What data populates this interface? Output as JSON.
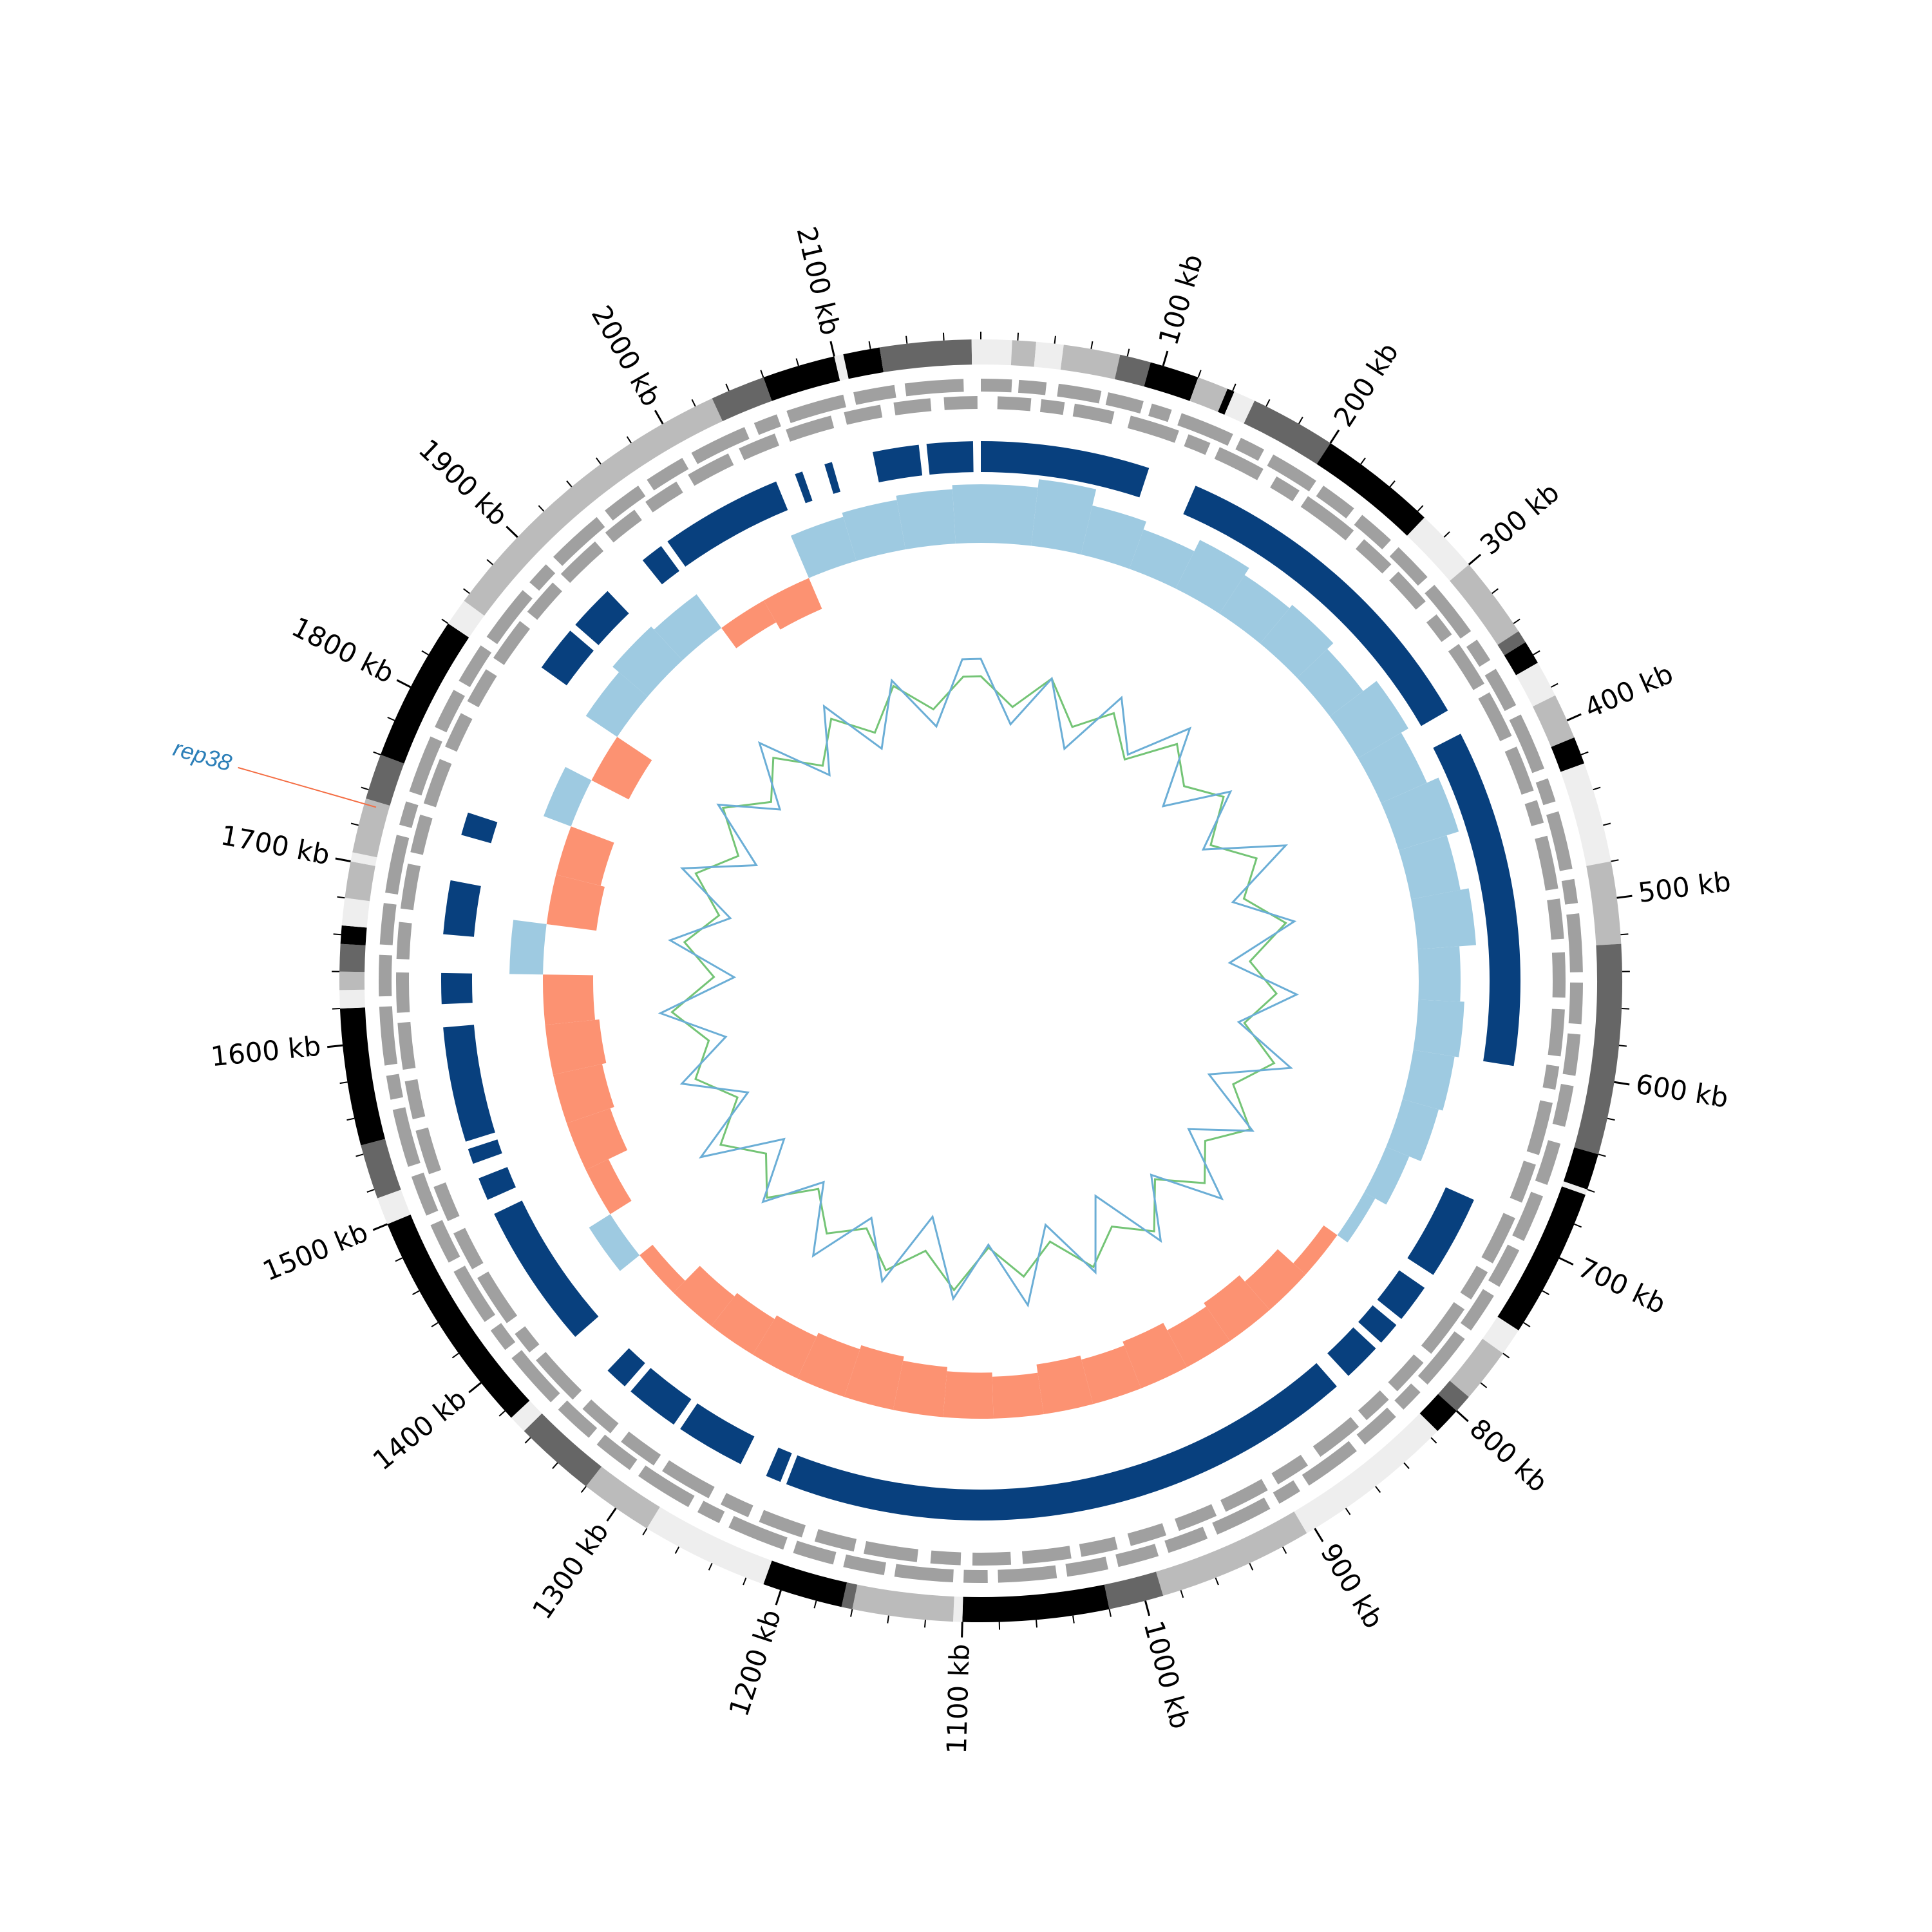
{
  "chart_data": {
    "type": "circos",
    "xlim": [
      0,
      2180
    ],
    "xticks": [
      {
        "value": 100,
        "label": "100 kb"
      },
      {
        "value": 200,
        "label": "200 kb"
      },
      {
        "value": 300,
        "label": "300 kb"
      },
      {
        "value": 400,
        "label": "400 kb"
      },
      {
        "value": 500,
        "label": "500 kb"
      },
      {
        "value": 600,
        "label": "600 kb"
      },
      {
        "value": 700,
        "label": "700 kb"
      },
      {
        "value": 800,
        "label": "800 kb"
      },
      {
        "value": 900,
        "label": "900 kb"
      },
      {
        "value": 1000,
        "label": "1000 kb"
      },
      {
        "value": 1100,
        "label": "1100 kb"
      },
      {
        "value": 1200,
        "label": "1200 kb"
      },
      {
        "value": 1300,
        "label": "1300 kb"
      },
      {
        "value": 1400,
        "label": "1400 kb"
      },
      {
        "value": 1500,
        "label": "1500 kb"
      },
      {
        "value": 1600,
        "label": "1600 kb"
      },
      {
        "value": 1700,
        "label": "1700 kb"
      },
      {
        "value": 1800,
        "label": "1800 kb"
      },
      {
        "value": 1900,
        "label": "1900 kb"
      },
      {
        "value": 2000,
        "label": "2000 kb"
      },
      {
        "value": 2100,
        "label": "2100 kb"
      }
    ],
    "minor_tick_interval": 20,
    "bands": [
      {
        "start": 0,
        "end": 17,
        "color": "#eeeeee"
      },
      {
        "start": 17,
        "end": 30,
        "color": "#bbbbbb"
      },
      {
        "start": 30,
        "end": 45,
        "color": "#eeeeee"
      },
      {
        "start": 45,
        "end": 76,
        "color": "#bbbbbb"
      },
      {
        "start": 76,
        "end": 93,
        "color": "#666666"
      },
      {
        "start": 93,
        "end": 120,
        "color": "#000000"
      },
      {
        "start": 120,
        "end": 137,
        "color": "#bbbbbb"
      },
      {
        "start": 137,
        "end": 141,
        "color": "#000000"
      },
      {
        "start": 141,
        "end": 153,
        "color": "#eeeeee"
      },
      {
        "start": 153,
        "end": 200,
        "color": "#666666"
      },
      {
        "start": 200,
        "end": 265,
        "color": "#000000"
      },
      {
        "start": 265,
        "end": 300,
        "color": "#eeeeee"
      },
      {
        "start": 300,
        "end": 345,
        "color": "#bbbbbb"
      },
      {
        "start": 345,
        "end": 352,
        "color": "#666666"
      },
      {
        "start": 352,
        "end": 365,
        "color": "#000000"
      },
      {
        "start": 365,
        "end": 385,
        "color": "#eeeeee"
      },
      {
        "start": 385,
        "end": 410,
        "color": "#bbbbbb"
      },
      {
        "start": 410,
        "end": 425,
        "color": "#000000"
      },
      {
        "start": 425,
        "end": 480,
        "color": "#eeeeee"
      },
      {
        "start": 480,
        "end": 525,
        "color": "#bbbbbb"
      },
      {
        "start": 525,
        "end": 640,
        "color": "#666666"
      },
      {
        "start": 640,
        "end": 660,
        "color": "#000000"
      },
      {
        "start": 660,
        "end": 663,
        "color": "#eeeeee"
      },
      {
        "start": 663,
        "end": 745,
        "color": "#000000"
      },
      {
        "start": 745,
        "end": 760,
        "color": "#eeeeee"
      },
      {
        "start": 760,
        "end": 790,
        "color": "#bbbbbb"
      },
      {
        "start": 790,
        "end": 800,
        "color": "#666666"
      },
      {
        "start": 800,
        "end": 815,
        "color": "#000000"
      },
      {
        "start": 815,
        "end": 905,
        "color": "#eeeeee"
      },
      {
        "start": 905,
        "end": 990,
        "color": "#bbbbbb"
      },
      {
        "start": 990,
        "end": 1020,
        "color": "#666666"
      },
      {
        "start": 1020,
        "end": 1100,
        "color": "#000000"
      },
      {
        "start": 1100,
        "end": 1105,
        "color": "#eeeeee"
      },
      {
        "start": 1105,
        "end": 1160,
        "color": "#bbbbbb"
      },
      {
        "start": 1160,
        "end": 1166,
        "color": "#666666"
      },
      {
        "start": 1166,
        "end": 1210,
        "color": "#000000"
      },
      {
        "start": 1210,
        "end": 1280,
        "color": "#eeeeee"
      },
      {
        "start": 1280,
        "end": 1320,
        "color": "#bbbbbb"
      },
      {
        "start": 1320,
        "end": 1365,
        "color": "#666666"
      },
      {
        "start": 1365,
        "end": 1375,
        "color": "#eeeeee"
      },
      {
        "start": 1375,
        "end": 1500,
        "color": "#000000"
      },
      {
        "start": 1500,
        "end": 1515,
        "color": "#eeeeee"
      },
      {
        "start": 1515,
        "end": 1545,
        "color": "#666666"
      },
      {
        "start": 1545,
        "end": 1620,
        "color": "#000000"
      },
      {
        "start": 1620,
        "end": 1630,
        "color": "#eeeeee"
      },
      {
        "start": 1630,
        "end": 1640,
        "color": "#bbbbbb"
      },
      {
        "start": 1640,
        "end": 1655,
        "color": "#666666"
      },
      {
        "start": 1655,
        "end": 1665,
        "color": "#000000"
      },
      {
        "start": 1665,
        "end": 1680,
        "color": "#eeeeee"
      },
      {
        "start": 1680,
        "end": 1700,
        "color": "#bbbbbb"
      },
      {
        "start": 1700,
        "end": 1705,
        "color": "#eeeeee"
      },
      {
        "start": 1705,
        "end": 1735,
        "color": "#bbbbbb"
      },
      {
        "start": 1735,
        "end": 1760,
        "color": "#666666"
      },
      {
        "start": 1760,
        "end": 1840,
        "color": "#000000"
      },
      {
        "start": 1840,
        "end": 1855,
        "color": "#eeeeee"
      },
      {
        "start": 1855,
        "end": 2030,
        "color": "#bbbbbb"
      },
      {
        "start": 2030,
        "end": 2060,
        "color": "#666666"
      },
      {
        "start": 2060,
        "end": 2100,
        "color": "#000000"
      },
      {
        "start": 2100,
        "end": 2105,
        "color": "#eeeeee"
      },
      {
        "start": 2105,
        "end": 2125,
        "color": "#000000"
      },
      {
        "start": 2125,
        "end": 2175,
        "color": "#666666"
      },
      {
        "start": 2175,
        "end": 2180,
        "color": "#eeeeee"
      }
    ],
    "gene_color": "#a0a0a0",
    "genes_forward": [
      [
        0,
        18
      ],
      [
        22,
        38
      ],
      [
        45,
        70
      ],
      [
        74,
        95
      ],
      [
        100,
        112
      ],
      [
        118,
        150
      ],
      [
        155,
        170
      ],
      [
        176,
        205
      ],
      [
        210,
        232
      ],
      [
        238,
        260
      ],
      [
        266,
        290
      ],
      [
        296,
        330
      ],
      [
        336,
        350
      ],
      [
        356,
        380
      ],
      [
        386,
        420
      ],
      [
        426,
        440
      ],
      [
        446,
        480
      ],
      [
        486,
        500
      ],
      [
        506,
        540
      ],
      [
        546,
        570
      ],
      [
        576,
        600
      ],
      [
        606,
        630
      ],
      [
        640,
        665
      ],
      [
        672,
        700
      ],
      [
        706,
        730
      ],
      [
        736,
        760
      ],
      [
        766,
        800
      ],
      [
        806,
        820
      ],
      [
        826,
        850
      ],
      [
        856,
        890
      ],
      [
        896,
        910
      ],
      [
        916,
        950
      ],
      [
        956,
        980
      ],
      [
        986,
        1010
      ],
      [
        1016,
        1040
      ],
      [
        1046,
        1080
      ],
      [
        1086,
        1100
      ],
      [
        1106,
        1140
      ],
      [
        1146,
        1170
      ],
      [
        1176,
        1200
      ],
      [
        1206,
        1240
      ],
      [
        1246,
        1260
      ],
      [
        1266,
        1300
      ],
      [
        1306,
        1330
      ],
      [
        1336,
        1360
      ],
      [
        1366,
        1400
      ],
      [
        1406,
        1420
      ],
      [
        1426,
        1460
      ],
      [
        1466,
        1490
      ],
      [
        1496,
        1520
      ],
      [
        1526,
        1560
      ],
      [
        1566,
        1580
      ],
      [
        1586,
        1620
      ],
      [
        1626,
        1650
      ],
      [
        1656,
        1680
      ],
      [
        1686,
        1720
      ],
      [
        1726,
        1740
      ],
      [
        1746,
        1780
      ],
      [
        1786,
        1810
      ],
      [
        1816,
        1840
      ],
      [
        1846,
        1880
      ],
      [
        1886,
        1900
      ],
      [
        1906,
        1940
      ],
      [
        1946,
        1970
      ],
      [
        1976,
        2000
      ],
      [
        2006,
        2040
      ],
      [
        2046,
        2060
      ],
      [
        2066,
        2100
      ],
      [
        2106,
        2130
      ],
      [
        2136,
        2170
      ]
    ],
    "genes_reverse": [
      [
        10,
        30
      ],
      [
        36,
        50
      ],
      [
        56,
        80
      ],
      [
        90,
        120
      ],
      [
        126,
        140
      ],
      [
        146,
        175
      ],
      [
        184,
        200
      ],
      [
        206,
        240
      ],
      [
        248,
        270
      ],
      [
        276,
        300
      ],
      [
        310,
        325
      ],
      [
        332,
        360
      ],
      [
        366,
        395
      ],
      [
        402,
        430
      ],
      [
        436,
        450
      ],
      [
        458,
        490
      ],
      [
        496,
        520
      ],
      [
        528,
        555
      ],
      [
        562,
        590
      ],
      [
        596,
        610
      ],
      [
        618,
        650
      ],
      [
        656,
        680
      ],
      [
        690,
        720
      ],
      [
        726,
        745
      ],
      [
        752,
        785
      ],
      [
        792,
        815
      ],
      [
        822,
        840
      ],
      [
        846,
        875
      ],
      [
        884,
        905
      ],
      [
        912,
        940
      ],
      [
        946,
        970
      ],
      [
        978,
        1000
      ],
      [
        1008,
        1030
      ],
      [
        1036,
        1065
      ],
      [
        1072,
        1095
      ],
      [
        1102,
        1120
      ],
      [
        1128,
        1160
      ],
      [
        1166,
        1190
      ],
      [
        1198,
        1225
      ],
      [
        1232,
        1250
      ],
      [
        1258,
        1290
      ],
      [
        1296,
        1320
      ],
      [
        1328,
        1350
      ],
      [
        1358,
        1390
      ],
      [
        1396,
        1410
      ],
      [
        1418,
        1450
      ],
      [
        1456,
        1480
      ],
      [
        1488,
        1510
      ],
      [
        1518,
        1545
      ],
      [
        1552,
        1575
      ],
      [
        1582,
        1610
      ],
      [
        1616,
        1640
      ],
      [
        1648,
        1670
      ],
      [
        1678,
        1705
      ],
      [
        1712,
        1735
      ],
      [
        1742,
        1770
      ],
      [
        1778,
        1800
      ],
      [
        1808,
        1830
      ],
      [
        1838,
        1865
      ],
      [
        1872,
        1895
      ],
      [
        1902,
        1930
      ],
      [
        1938,
        1960
      ],
      [
        1968,
        1990
      ],
      [
        1998,
        2025
      ],
      [
        2032,
        2055
      ],
      [
        2062,
        2090
      ],
      [
        2098,
        2120
      ],
      [
        2128,
        2150
      ],
      [
        2158,
        2178
      ]
    ],
    "block_color": "#08407e",
    "blocks": [
      [
        0,
        110
      ],
      [
        142,
        363
      ],
      [
        380,
        600
      ],
      [
        690,
        745
      ],
      [
        755,
        780
      ],
      [
        785,
        800
      ],
      [
        805,
        830
      ],
      [
        840,
        1218
      ],
      [
        1222,
        1232
      ],
      [
        1250,
        1295
      ],
      [
        1300,
        1335
      ],
      [
        1340,
        1355
      ],
      [
        1385,
        1480
      ],
      [
        1490,
        1505
      ],
      [
        1515,
        1525
      ],
      [
        1530,
        1605
      ],
      [
        1620,
        1640
      ],
      [
        1665,
        1700
      ],
      [
        1730,
        1745
      ],
      [
        1850,
        1880
      ],
      [
        1885,
        1915
      ],
      [
        1945,
        1960
      ],
      [
        1965,
        2045
      ],
      [
        2058,
        2063
      ],
      [
        2078,
        2083
      ],
      [
        2110,
        2140
      ],
      [
        2145,
        2175
      ]
    ],
    "skew": {
      "x": [
        0,
        40,
        80,
        120,
        160,
        200,
        240,
        280,
        320,
        360,
        400,
        440,
        480,
        520,
        560,
        600,
        640,
        680,
        720,
        760,
        800,
        840,
        880,
        920,
        960,
        1000,
        1040,
        1080,
        1120,
        1160,
        1200,
        1240,
        1280,
        1320,
        1360,
        1400,
        1440,
        1480,
        1520,
        1560,
        1600,
        1640,
        1680,
        1720,
        1760,
        1800,
        1840,
        1880,
        1920,
        1960,
        2000,
        2040,
        2080,
        2120,
        2160
      ],
      "values": [
        0.7,
        0.8,
        0.6,
        0.5,
        0.65,
        0.55,
        0.6,
        0.5,
        0.7,
        0.6,
        0.75,
        0.6,
        0.7,
        0.5,
        0.55,
        0.5,
        0.45,
        0.3,
        0.15,
        -0.2,
        -0.45,
        -0.55,
        -0.5,
        -0.6,
        -0.55,
        -0.6,
        -0.5,
        -0.55,
        -0.6,
        -0.65,
        -0.6,
        -0.55,
        -0.5,
        -0.45,
        -0.2,
        0.3,
        -0.3,
        -0.55,
        -0.6,
        -0.65,
        -0.6,
        0.4,
        -0.6,
        -0.55,
        0.35,
        -0.5,
        0.45,
        0.55,
        0.5,
        -0.3,
        -0.4,
        0.55,
        0.6,
        0.65,
        0.7
      ],
      "ylim": [
        -1,
        1
      ],
      "positive_color": "#9ecae1",
      "negative_color": "#fc9272"
    },
    "series": [
      {
        "color": "#74c476",
        "values": [
          0.3,
          -0.2,
          0.4,
          -0.3,
          0.2,
          -0.4,
          0.35,
          -0.1,
          0.3,
          -0.35,
          0.25,
          -0.2,
          0.4,
          -0.3,
          0.15,
          -0.35,
          0.3,
          -0.25,
          0.35,
          -0.2,
          0.25,
          -0.4,
          0.3,
          -0.15,
          0.35,
          -0.3,
          0.2,
          -0.35,
          0.4,
          -0.2,
          0.3,
          -0.25,
          0.15,
          -0.4,
          0.3,
          -0.2,
          0.35,
          -0.3,
          0.25,
          -0.15,
          0.4,
          -0.35,
          0.2,
          -0.3,
          0.3,
          -0.25,
          0.4,
          -0.2,
          0.3,
          -0.35,
          0.25,
          -0.3,
          0.35,
          -0.2,
          0.3
        ]
      },
      {
        "color": "#6baed6",
        "values": [
          0.6,
          -0.5,
          0.4,
          -0.7,
          0.5,
          -0.3,
          0.7,
          -0.6,
          0.45,
          -0.5,
          0.8,
          -0.4,
          0.55,
          -0.65,
          0.5,
          -0.45,
          0.6,
          -0.7,
          0.4,
          -0.55,
          0.65,
          -0.5,
          0.5,
          -0.75,
          0.45,
          -0.6,
          0.7,
          -0.4,
          0.55,
          -0.8,
          0.5,
          -0.45,
          0.6,
          -0.55,
          0.4,
          -0.6,
          0.75,
          -0.5,
          0.5,
          -0.45,
          0.6,
          -0.7,
          0.45,
          -0.5,
          0.55,
          -0.6,
          0.5,
          -0.4,
          0.65,
          -0.55,
          0.5,
          -0.6,
          0.45,
          -0.5,
          0.6
        ]
      }
    ],
    "inner_ylim": [
      -1,
      1
    ],
    "annotations": [
      {
        "label": "rep38",
        "position": 1732
      }
    ]
  }
}
